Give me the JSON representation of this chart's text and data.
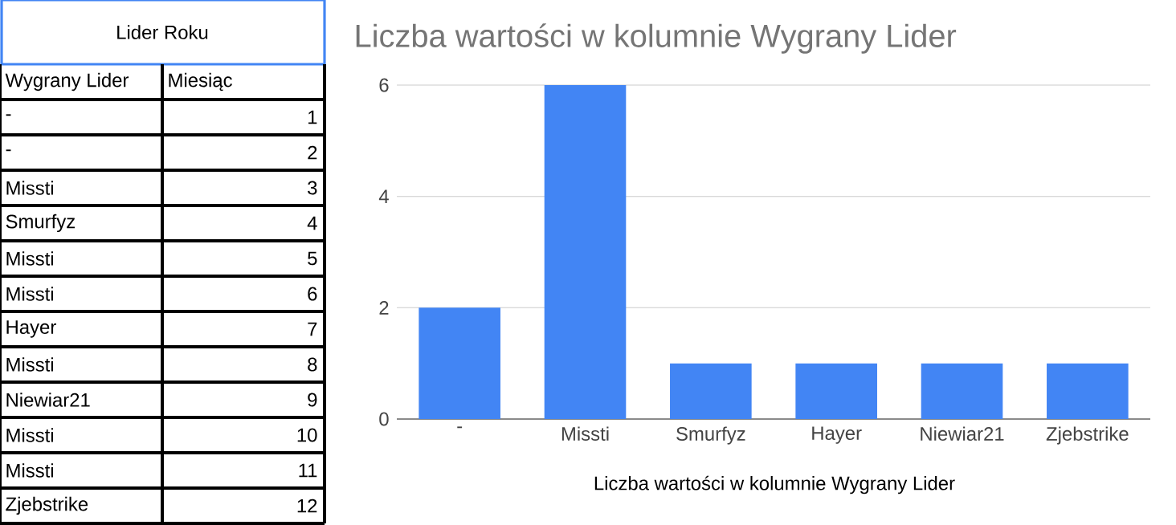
{
  "chart_data": [
    {
      "type": "other",
      "title": "Lider Roku",
      "annotations": [
        "Wygrany Lider",
        "Miesiąc"
      ],
      "categories": [
        "-",
        "-",
        "Missti",
        "Smurfyz",
        "Missti",
        "Missti",
        "Hayer",
        "Missti",
        "Niewiar21",
        "Missti",
        "Missti",
        "Zjebstrike"
      ],
      "values": [
        1,
        2,
        3,
        4,
        5,
        6,
        7,
        8,
        9,
        10,
        11,
        12
      ],
      "data_labels": true
    },
    {
      "type": "bar",
      "title": "Liczba wartości w kolumnie Wygrany Lider",
      "xlabel": "Liczba wartości w kolumnie Wygrany Lider",
      "categories": [
        "-",
        "Missti",
        "Smurfyz",
        "Hayer",
        "Niewiar21",
        "Zjebstrike"
      ],
      "values": [
        2,
        6,
        1,
        1,
        1,
        1
      ],
      "color": "#4285f4",
      "ylim": [
        0,
        6
      ],
      "yticks": [
        0,
        2,
        4,
        6
      ],
      "grid": "y"
    }
  ]
}
